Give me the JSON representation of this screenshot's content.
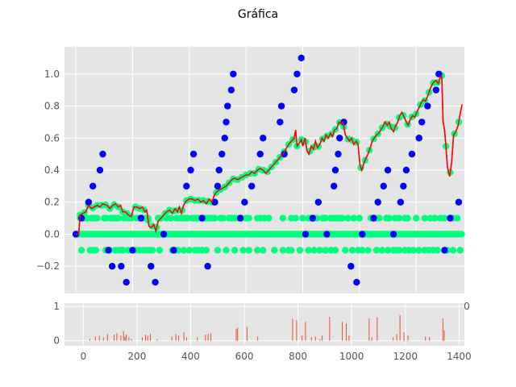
{
  "figure_title": "Gráfica",
  "colors": {
    "panel_bg": "#e5e5e5",
    "grid": "#ffffff",
    "tick_text": "#555555",
    "blue_points": "#0000ff",
    "green_points": "#00ff7f",
    "line": "#ff0000",
    "volume_bars": "#e8502a"
  },
  "chart_data": [
    {
      "type": "scatter",
      "title": "",
      "xlabel": "",
      "ylabel": "",
      "xlim": [
        -40,
        1370
      ],
      "ylim": [
        -0.37,
        1.17
      ],
      "grid": true,
      "x_ticks": [
        0,
        200,
        400,
        600,
        800,
        1000,
        1200
      ],
      "y_ticks": [
        -0.2,
        0.0,
        0.2,
        0.4,
        0.6,
        0.8,
        1.0
      ],
      "y_tick_labels": [
        "−0.2",
        "0.0",
        "0.2",
        "0.4",
        "0.6",
        "0.8",
        "1.0"
      ],
      "partial_tick_label": "0",
      "blue_points": [
        [
          0,
          0.0
        ],
        [
          20,
          0.1
        ],
        [
          45,
          0.2
        ],
        [
          60,
          0.3
        ],
        [
          85,
          0.4
        ],
        [
          95,
          0.5
        ],
        [
          115,
          -0.1
        ],
        [
          128,
          -0.2
        ],
        [
          160,
          -0.2
        ],
        [
          178,
          -0.3
        ],
        [
          200,
          -0.1
        ],
        [
          230,
          0.1
        ],
        [
          265,
          -0.2
        ],
        [
          280,
          -0.3
        ],
        [
          310,
          0.0
        ],
        [
          345,
          -0.1
        ],
        [
          390,
          0.3
        ],
        [
          405,
          0.4
        ],
        [
          415,
          0.5
        ],
        [
          445,
          0.1
        ],
        [
          465,
          -0.2
        ],
        [
          490,
          0.2
        ],
        [
          500,
          0.3
        ],
        [
          505,
          0.4
        ],
        [
          515,
          0.5
        ],
        [
          525,
          0.6
        ],
        [
          530,
          0.7
        ],
        [
          535,
          0.8
        ],
        [
          548,
          0.9
        ],
        [
          555,
          1.0
        ],
        [
          580,
          0.1
        ],
        [
          595,
          0.2
        ],
        [
          620,
          0.3
        ],
        [
          650,
          0.5
        ],
        [
          660,
          0.6
        ],
        [
          720,
          0.7
        ],
        [
          725,
          0.8
        ],
        [
          735,
          0.5
        ],
        [
          770,
          0.9
        ],
        [
          780,
          1.0
        ],
        [
          795,
          1.1
        ],
        [
          810,
          0.0
        ],
        [
          835,
          0.1
        ],
        [
          855,
          0.2
        ],
        [
          885,
          0.0
        ],
        [
          910,
          0.3
        ],
        [
          915,
          0.4
        ],
        [
          925,
          0.5
        ],
        [
          930,
          0.6
        ],
        [
          945,
          0.7
        ],
        [
          970,
          -0.2
        ],
        [
          990,
          -0.3
        ],
        [
          1010,
          0.0
        ],
        [
          1050,
          0.1
        ],
        [
          1065,
          0.2
        ],
        [
          1085,
          0.3
        ],
        [
          1100,
          0.4
        ],
        [
          1120,
          0.0
        ],
        [
          1145,
          0.2
        ],
        [
          1155,
          0.3
        ],
        [
          1165,
          0.4
        ],
        [
          1185,
          0.5
        ],
        [
          1210,
          0.6
        ],
        [
          1220,
          0.7
        ],
        [
          1240,
          0.8
        ],
        [
          1270,
          0.9
        ],
        [
          1280,
          1.0
        ],
        [
          1300,
          -0.1
        ],
        [
          1320,
          0.1
        ],
        [
          1350,
          0.2
        ]
      ],
      "green_points": {
        "zero_row_x_range": [
          0,
          1360
        ],
        "zero_row_step": 4,
        "row_0_1_x": [
          15,
          30,
          40,
          55,
          65,
          75,
          100,
          110,
          125,
          135,
          145,
          150,
          170,
          185,
          195,
          215,
          225,
          235,
          245,
          255,
          290,
          300,
          320,
          335,
          355,
          365,
          375,
          385,
          395,
          410,
          420,
          430,
          440,
          450,
          460,
          470,
          480,
          490,
          510,
          520,
          540,
          550,
          560,
          570,
          585,
          600,
          610,
          640,
          650,
          665,
          680,
          730,
          760,
          775,
          800,
          820,
          830,
          840,
          850,
          870,
          880,
          900,
          910,
          920,
          930,
          940,
          960,
          980,
          1000,
          1040,
          1050,
          1060,
          1070,
          1095,
          1105,
          1125,
          1140,
          1160,
          1170,
          1200,
          1230,
          1250,
          1265,
          1285,
          1300,
          1330,
          1345
        ],
        "row_minus_0_1_x": [
          20,
          50,
          60,
          70,
          105,
          120,
          140,
          155,
          165,
          185,
          210,
          225,
          240,
          250,
          260,
          270,
          295,
          340,
          350,
          360,
          380,
          400,
          420,
          430,
          445,
          460,
          500,
          530,
          560,
          590,
          610,
          640,
          660,
          700,
          730,
          750,
          760,
          790,
          820,
          840,
          860,
          880,
          900,
          915,
          950,
          975,
          995,
          1010,
          1030,
          1060,
          1080,
          1100,
          1120,
          1130,
          1140,
          1160,
          1175,
          1190,
          1210,
          1230,
          1245,
          1260,
          1275,
          1310,
          1330,
          1355
        ],
        "on_line_x_step": 15
      },
      "red_line": [
        [
          0,
          0.0
        ],
        [
          10,
          0.0
        ],
        [
          15,
          0.12
        ],
        [
          25,
          0.13
        ],
        [
          35,
          0.14
        ],
        [
          45,
          0.18
        ],
        [
          55,
          0.16
        ],
        [
          65,
          0.17
        ],
        [
          75,
          0.18
        ],
        [
          85,
          0.17
        ],
        [
          95,
          0.19
        ],
        [
          110,
          0.18
        ],
        [
          120,
          0.16
        ],
        [
          130,
          0.18
        ],
        [
          140,
          0.19
        ],
        [
          150,
          0.17
        ],
        [
          158,
          0.18
        ],
        [
          165,
          0.14
        ],
        [
          175,
          0.14
        ],
        [
          185,
          0.12
        ],
        [
          195,
          0.11
        ],
        [
          205,
          0.17
        ],
        [
          215,
          0.17
        ],
        [
          225,
          0.16
        ],
        [
          235,
          0.17
        ],
        [
          243,
          0.14
        ],
        [
          250,
          0.15
        ],
        [
          258,
          0.05
        ],
        [
          265,
          0.04
        ],
        [
          275,
          0.06
        ],
        [
          282,
          0.02
        ],
        [
          290,
          0.08
        ],
        [
          300,
          0.1
        ],
        [
          310,
          0.12
        ],
        [
          320,
          0.14
        ],
        [
          330,
          0.15
        ],
        [
          340,
          0.13
        ],
        [
          350,
          0.16
        ],
        [
          358,
          0.14
        ],
        [
          365,
          0.17
        ],
        [
          372,
          0.13
        ],
        [
          380,
          0.18
        ],
        [
          390,
          0.21
        ],
        [
          400,
          0.22
        ],
        [
          410,
          0.22
        ],
        [
          420,
          0.21
        ],
        [
          430,
          0.22
        ],
        [
          440,
          0.2
        ],
        [
          450,
          0.21
        ],
        [
          460,
          0.19
        ],
        [
          470,
          0.22
        ],
        [
          480,
          0.2
        ],
        [
          490,
          0.25
        ],
        [
          500,
          0.27
        ],
        [
          510,
          0.28
        ],
        [
          520,
          0.29
        ],
        [
          530,
          0.3
        ],
        [
          540,
          0.32
        ],
        [
          550,
          0.34
        ],
        [
          560,
          0.35
        ],
        [
          570,
          0.34
        ],
        [
          580,
          0.35
        ],
        [
          590,
          0.36
        ],
        [
          600,
          0.37
        ],
        [
          610,
          0.37
        ],
        [
          620,
          0.39
        ],
        [
          630,
          0.38
        ],
        [
          640,
          0.4
        ],
        [
          650,
          0.41
        ],
        [
          660,
          0.4
        ],
        [
          670,
          0.38
        ],
        [
          680,
          0.4
        ],
        [
          690,
          0.42
        ],
        [
          700,
          0.44
        ],
        [
          710,
          0.46
        ],
        [
          720,
          0.48
        ],
        [
          730,
          0.5
        ],
        [
          740,
          0.53
        ],
        [
          750,
          0.56
        ],
        [
          760,
          0.58
        ],
        [
          770,
          0.6
        ],
        [
          775,
          0.65
        ],
        [
          780,
          0.55
        ],
        [
          788,
          0.57
        ],
        [
          795,
          0.59
        ],
        [
          800,
          0.55
        ],
        [
          808,
          0.6
        ],
        [
          815,
          0.52
        ],
        [
          822,
          0.5
        ],
        [
          830,
          0.55
        ],
        [
          838,
          0.53
        ],
        [
          845,
          0.58
        ],
        [
          852,
          0.54
        ],
        [
          860,
          0.56
        ],
        [
          868,
          0.6
        ],
        [
          875,
          0.58
        ],
        [
          882,
          0.62
        ],
        [
          890,
          0.6
        ],
        [
          898,
          0.63
        ],
        [
          905,
          0.61
        ],
        [
          912,
          0.65
        ],
        [
          920,
          0.66
        ],
        [
          928,
          0.7
        ],
        [
          935,
          0.69
        ],
        [
          942,
          0.7
        ],
        [
          950,
          0.62
        ],
        [
          958,
          0.6
        ],
        [
          965,
          0.58
        ],
        [
          972,
          0.6
        ],
        [
          980,
          0.56
        ],
        [
          988,
          0.58
        ],
        [
          995,
          0.56
        ],
        [
          1002,
          0.43
        ],
        [
          1008,
          0.4
        ],
        [
          1015,
          0.44
        ],
        [
          1022,
          0.47
        ],
        [
          1030,
          0.5
        ],
        [
          1038,
          0.54
        ],
        [
          1045,
          0.58
        ],
        [
          1052,
          0.6
        ],
        [
          1060,
          0.62
        ],
        [
          1068,
          0.63
        ],
        [
          1075,
          0.65
        ],
        [
          1082,
          0.67
        ],
        [
          1090,
          0.7
        ],
        [
          1098,
          0.68
        ],
        [
          1105,
          0.7
        ],
        [
          1112,
          0.66
        ],
        [
          1120,
          0.64
        ],
        [
          1128,
          0.68
        ],
        [
          1135,
          0.7
        ],
        [
          1142,
          0.74
        ],
        [
          1150,
          0.76
        ],
        [
          1158,
          0.73
        ],
        [
          1165,
          0.7
        ],
        [
          1172,
          0.68
        ],
        [
          1180,
          0.72
        ],
        [
          1188,
          0.74
        ],
        [
          1195,
          0.73
        ],
        [
          1202,
          0.76
        ],
        [
          1210,
          0.79
        ],
        [
          1218,
          0.82
        ],
        [
          1225,
          0.84
        ],
        [
          1232,
          0.83
        ],
        [
          1240,
          0.86
        ],
        [
          1248,
          0.9
        ],
        [
          1255,
          0.93
        ],
        [
          1262,
          0.95
        ],
        [
          1270,
          0.96
        ],
        [
          1278,
          0.94
        ],
        [
          1285,
          0.98
        ],
        [
          1290,
          0.99
        ],
        [
          1295,
          0.7
        ],
        [
          1300,
          0.65
        ],
        [
          1305,
          0.55
        ],
        [
          1310,
          0.42
        ],
        [
          1318,
          0.36
        ],
        [
          1325,
          0.45
        ],
        [
          1332,
          0.62
        ],
        [
          1340,
          0.64
        ],
        [
          1348,
          0.68
        ],
        [
          1355,
          0.75
        ],
        [
          1362,
          0.81
        ]
      ]
    },
    {
      "type": "bar",
      "title": "",
      "xlabel": "",
      "ylabel": "",
      "xlim": [
        -70,
        1420
      ],
      "ylim": [
        -0.15,
        1.1
      ],
      "grid": true,
      "x_ticks": [
        0,
        200,
        400,
        600,
        800,
        1000,
        1200,
        1400
      ],
      "y_ticks": [
        0,
        1
      ],
      "x": [
        25,
        45,
        60,
        75,
        90,
        115,
        125,
        140,
        150,
        155,
        160,
        170,
        180,
        220,
        232,
        240,
        250,
        275,
        330,
        345,
        355,
        375,
        385,
        425,
        455,
        465,
        475,
        570,
        575,
        610,
        650,
        780,
        795,
        815,
        828,
        850,
        865,
        882,
        890,
        918,
        965,
        980,
        990,
        1065,
        1075,
        1095,
        1155,
        1168,
        1180,
        1195,
        1210,
        1275,
        1290,
        1340,
        1345
      ],
      "values": [
        0.05,
        0.12,
        0.15,
        0.1,
        0.2,
        0.18,
        0.22,
        0.15,
        0.28,
        0.12,
        0.18,
        0.1,
        0.05,
        0.1,
        0.18,
        0.15,
        0.2,
        0.05,
        0.12,
        0.2,
        0.15,
        0.25,
        0.1,
        0.1,
        0.18,
        0.2,
        0.22,
        0.35,
        0.38,
        0.4,
        0.12,
        0.65,
        0.6,
        0.15,
        0.55,
        0.1,
        0.12,
        0.05,
        0.15,
        0.7,
        0.55,
        0.5,
        0.15,
        0.65,
        0.1,
        0.68,
        0.1,
        0.2,
        0.75,
        0.25,
        0.15,
        0.12,
        0.1,
        0.65,
        0.3
      ]
    }
  ]
}
